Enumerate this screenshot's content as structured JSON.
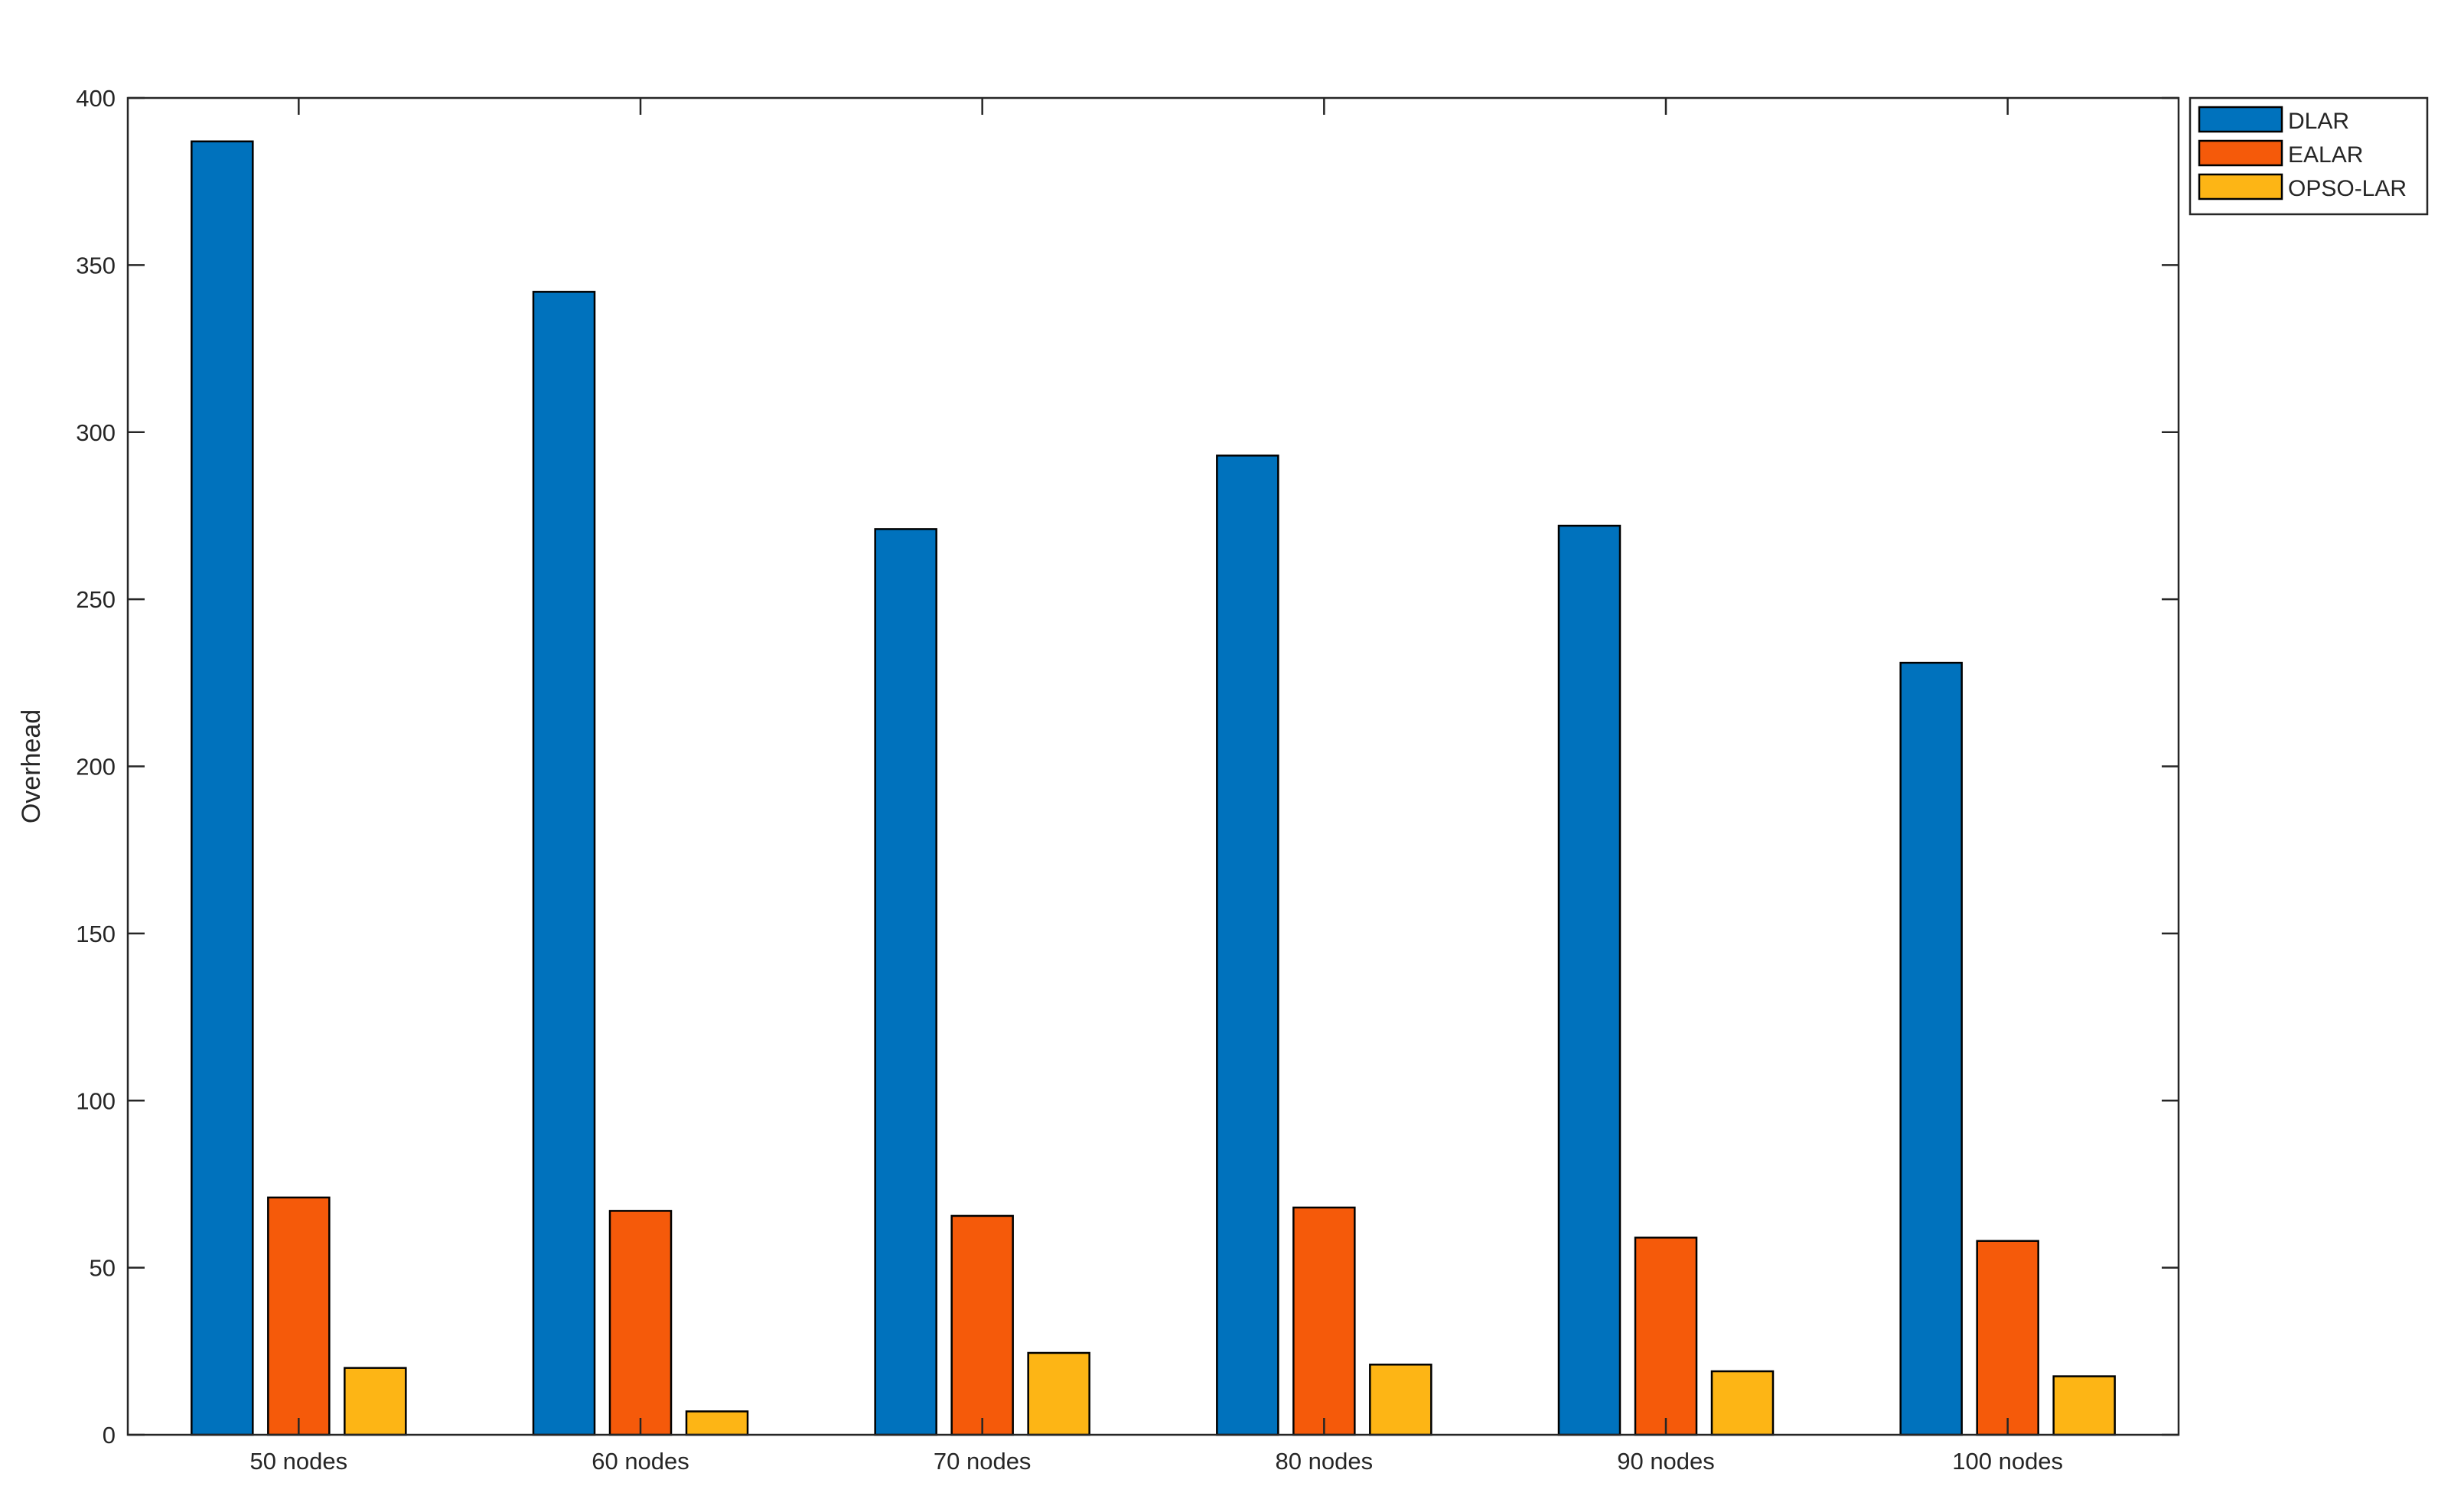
{
  "chart_data": {
    "type": "bar",
    "title": "",
    "xlabel": "",
    "ylabel": "Overhead",
    "ylim": [
      0,
      400
    ],
    "yticks": [
      0,
      50,
      100,
      150,
      200,
      250,
      300,
      350,
      400
    ],
    "grid": false,
    "legend_position": "outside-top-right",
    "categories": [
      "50 nodes",
      "60 nodes",
      "70 nodes",
      "80 nodes",
      "90 nodes",
      "100 nodes"
    ],
    "series": [
      {
        "name": "DLAR",
        "color": "#0072BD",
        "values": [
          387,
          342,
          271,
          293,
          272,
          231
        ]
      },
      {
        "name": "EALAR",
        "color": "#F55A0A",
        "values": [
          71,
          67,
          65.5,
          68,
          59,
          58
        ]
      },
      {
        "name": "OPSO-LAR",
        "color": "#FDB515",
        "values": [
          20,
          7,
          24.5,
          21,
          19,
          17.5
        ]
      }
    ]
  }
}
